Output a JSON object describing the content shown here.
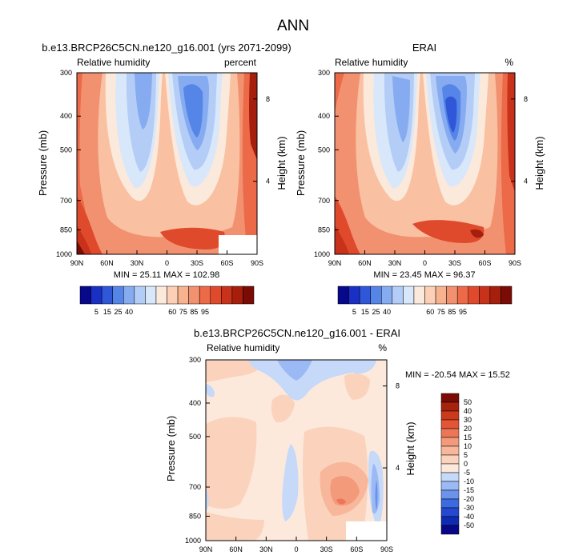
{
  "title": "ANN",
  "colors": {
    "abs_scale": [
      "#08088a",
      "#1a2fc4",
      "#2f57d8",
      "#5585e6",
      "#86abf0",
      "#b3cdf6",
      "#d9e7fa",
      "#fbe9dc",
      "#fbd0b6",
      "#f7b290",
      "#f29170",
      "#ec6a48",
      "#e04a2c",
      "#c8321a",
      "#a51f0c",
      "#7a0c05"
    ],
    "diff_scale": [
      "#070787",
      "#0f2bb3",
      "#2448cf",
      "#3c6ae0",
      "#6b93ec",
      "#9bb9f4",
      "#c6d9f9",
      "#fde9dc",
      "#fbd3bd",
      "#f8b79b",
      "#f39a7a",
      "#ec7655",
      "#e35534",
      "#cc3a1c",
      "#a8230c",
      "#7a0b05"
    ]
  },
  "panels": [
    {
      "id": "model",
      "title": "b.e13.BRCP26C5CN.ne120_g16.001 (yrs 2071-2099)",
      "left_label": "Relative humidity",
      "right_label": "percent",
      "ylabel": "Pressure (mb)",
      "ylabel_right": "Height (km)",
      "stats": "MIN =  25.11   MAX = 102.98"
    },
    {
      "id": "obs",
      "title": "ERAI",
      "left_label": "Relative humidity",
      "right_label": "%",
      "ylabel": "Pressure (mb)",
      "ylabel_right": "Height (km)",
      "stats": "MIN =  23.45   MAX =  96.37"
    },
    {
      "id": "diff",
      "title": "b.e13.BRCP26C5CN.ne120_g16.001 - ERAI",
      "left_label": "Relative humidity",
      "right_label": "%",
      "ylabel": "Pressure (mb)",
      "ylabel_right": "Height (km)",
      "stats": "MIN = -20.54   MAX =  15.52"
    }
  ],
  "chart_data": [
    {
      "type": "heatmap",
      "title": "b.e13.BRCP26C5CN.ne120_g16.001 (yrs 2071-2099)",
      "xlabel": "",
      "ylabel": "Pressure (mb)",
      "x_ticks": [
        "90N",
        "60N",
        "30N",
        "0",
        "30S",
        "60S",
        "90S"
      ],
      "y_ticks": [
        300,
        400,
        500,
        700,
        850,
        1000
      ],
      "y2_ticks": [
        8,
        4
      ],
      "y2_label": "Height (km)",
      "min": 25.11,
      "max": 102.98,
      "colorbar_labels": [
        "5",
        "15",
        "25",
        "40",
        "60",
        "75",
        "85",
        "95"
      ]
    },
    {
      "type": "heatmap",
      "title": "ERAI",
      "xlabel": "",
      "ylabel": "Pressure (mb)",
      "x_ticks": [
        "90N",
        "60N",
        "30N",
        "0",
        "30S",
        "60S",
        "90S"
      ],
      "y_ticks": [
        300,
        400,
        500,
        700,
        850,
        1000
      ],
      "y2_ticks": [
        8,
        4
      ],
      "y2_label": "Height (km)",
      "min": 23.45,
      "max": 96.37,
      "colorbar_labels": [
        "5",
        "15",
        "25",
        "40",
        "60",
        "75",
        "85",
        "95"
      ]
    },
    {
      "type": "heatmap",
      "title": "b.e13.BRCP26C5CN.ne120_g16.001 - ERAI",
      "xlabel": "",
      "ylabel": "Pressure (mb)",
      "x_ticks": [
        "90N",
        "60N",
        "30N",
        "0",
        "30S",
        "60S",
        "90S"
      ],
      "y_ticks": [
        300,
        400,
        500,
        700,
        850,
        1000
      ],
      "y2_ticks": [
        8,
        4
      ],
      "y2_label": "Height (km)",
      "min": -20.54,
      "max": 15.52,
      "colorbar_labels": [
        "50",
        "40",
        "30",
        "20",
        "15",
        "10",
        "5",
        "0",
        "-5",
        "-10",
        "-15",
        "-20",
        "-30",
        "-40",
        "-50"
      ]
    }
  ]
}
